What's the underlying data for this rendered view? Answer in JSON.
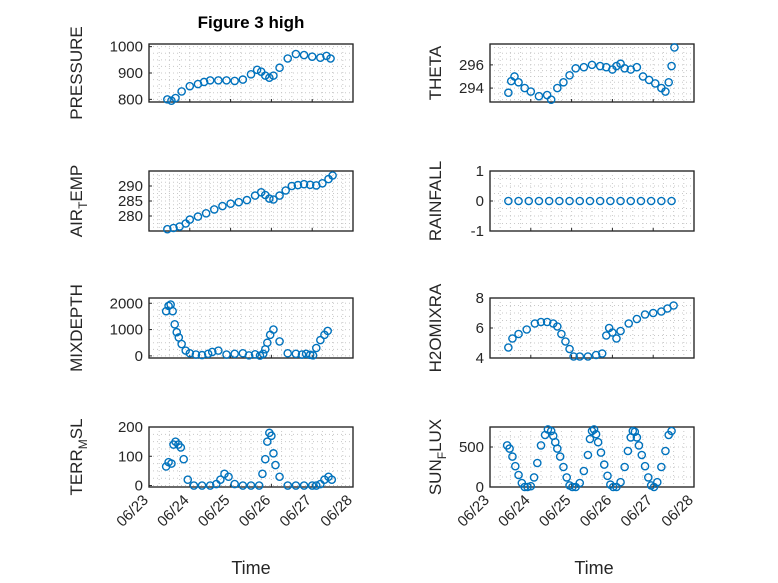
{
  "figure": {
    "title": "Figure 3 high",
    "xlabel": "Time",
    "marker_color": "#0072BD",
    "grid": true
  },
  "chart_data": [
    {
      "type": "scatter",
      "marker": "circle",
      "ylabel": "PRESSURE",
      "xlim": [
        "06/23",
        "06/28"
      ],
      "xtick_labels": [],
      "ylim": [
        790,
        1010
      ],
      "yticks": [
        800,
        900,
        1000
      ],
      "x": [
        23.45,
        23.55,
        23.65,
        23.8,
        24.0,
        24.2,
        24.35,
        24.5,
        24.7,
        24.9,
        25.1,
        25.3,
        25.5,
        25.65,
        25.75,
        25.85,
        25.95,
        26.05,
        26.2,
        26.4,
        26.6,
        26.8,
        27.0,
        27.2,
        27.35,
        27.45
      ],
      "y": [
        800,
        795,
        805,
        830,
        850,
        858,
        866,
        872,
        872,
        872,
        870,
        875,
        895,
        912,
        905,
        890,
        882,
        890,
        920,
        955,
        972,
        968,
        962,
        958,
        965,
        955
      ]
    },
    {
      "type": "scatter",
      "marker": "circle",
      "ylabel": "THETA",
      "xlim": [
        "06/23",
        "06/28"
      ],
      "xtick_labels": [],
      "ylim": [
        292.8,
        297.8
      ],
      "yticks": [
        294,
        296
      ],
      "x": [
        23.45,
        23.52,
        23.6,
        23.7,
        23.85,
        24.0,
        24.2,
        24.4,
        24.5,
        24.65,
        24.8,
        24.95,
        25.1,
        25.3,
        25.5,
        25.7,
        25.85,
        26.0,
        26.1,
        26.2,
        26.3,
        26.45,
        26.6,
        26.75,
        26.9,
        27.05,
        27.2,
        27.3,
        27.38,
        27.45,
        27.52
      ],
      "y": [
        293.6,
        294.6,
        295.0,
        294.5,
        294.0,
        293.7,
        293.3,
        293.4,
        293.0,
        294.0,
        294.5,
        295.1,
        295.7,
        295.8,
        296.0,
        295.9,
        295.8,
        295.6,
        295.9,
        296.1,
        295.7,
        295.6,
        295.8,
        295.0,
        294.7,
        294.4,
        294.0,
        293.7,
        294.5,
        295.9,
        297.5
      ]
    },
    {
      "type": "scatter",
      "marker": "circle",
      "ylabel": "AIR_TEMP",
      "xlim": [
        "06/23",
        "06/28"
      ],
      "xtick_labels": [],
      "ylim": [
        275,
        295
      ],
      "yticks": [
        280,
        285,
        290
      ],
      "x": [
        23.45,
        23.6,
        23.75,
        23.9,
        24.0,
        24.2,
        24.4,
        24.6,
        24.8,
        25.0,
        25.2,
        25.4,
        25.6,
        25.75,
        25.85,
        25.95,
        26.05,
        26.2,
        26.35,
        26.5,
        26.65,
        26.8,
        26.95,
        27.1,
        27.25,
        27.4,
        27.5
      ],
      "y": [
        275.6,
        276.0,
        276.5,
        277.5,
        278.8,
        279.8,
        280.9,
        282.2,
        283.3,
        284.1,
        284.6,
        285.3,
        286.8,
        287.9,
        287.0,
        285.8,
        285.5,
        286.8,
        288.5,
        290.0,
        290.3,
        290.6,
        290.4,
        290.2,
        290.9,
        292.3,
        293.5
      ]
    },
    {
      "type": "scatter",
      "marker": "circle",
      "ylabel": "RAINFALL",
      "xlim": [
        "06/23",
        "06/28"
      ],
      "xtick_labels": [],
      "ylim": [
        -1,
        1
      ],
      "yticks": [
        -1,
        0,
        1
      ],
      "x": [
        23.45,
        23.7,
        23.95,
        24.2,
        24.45,
        24.7,
        24.95,
        25.2,
        25.45,
        25.7,
        25.95,
        26.2,
        26.45,
        26.7,
        26.95,
        27.2,
        27.45
      ],
      "y": [
        0,
        0,
        0,
        0,
        0,
        0,
        0,
        0,
        0,
        0,
        0,
        0,
        0,
        0,
        0,
        0,
        0
      ]
    },
    {
      "type": "scatter",
      "marker": "circle",
      "ylabel": "MIXDEPTH",
      "xlim": [
        "06/23",
        "06/28"
      ],
      "xtick_labels": [],
      "ylim": [
        -80,
        2200
      ],
      "yticks": [
        0,
        1000,
        2000
      ],
      "x": [
        23.42,
        23.48,
        23.53,
        23.58,
        23.63,
        23.68,
        23.73,
        23.8,
        23.9,
        24.0,
        24.15,
        24.3,
        24.45,
        24.55,
        24.7,
        24.9,
        25.1,
        25.3,
        25.45,
        25.6,
        25.72,
        25.8,
        25.85,
        25.9,
        25.97,
        26.05,
        26.2,
        26.4,
        26.6,
        26.75,
        26.85,
        26.95,
        27.02,
        27.1,
        27.2,
        27.3,
        27.38
      ],
      "y": [
        1700,
        1900,
        1950,
        1700,
        1200,
        900,
        700,
        450,
        200,
        100,
        50,
        30,
        80,
        150,
        200,
        50,
        80,
        100,
        20,
        60,
        10,
        80,
        250,
        500,
        800,
        1000,
        550,
        100,
        80,
        50,
        80,
        40,
        20,
        300,
        600,
        800,
        950
      ]
    },
    {
      "type": "scatter",
      "marker": "circle",
      "ylabel": "H2OMIXRA",
      "xlim": [
        "06/23",
        "06/28"
      ],
      "xtick_labels": [],
      "ylim": [
        4,
        8
      ],
      "yticks": [
        4,
        6,
        8
      ],
      "x": [
        23.45,
        23.55,
        23.7,
        23.9,
        24.1,
        24.25,
        24.4,
        24.55,
        24.65,
        24.75,
        24.85,
        24.95,
        25.05,
        25.2,
        25.4,
        25.6,
        25.75,
        25.85,
        25.92,
        26.0,
        26.1,
        26.2,
        26.4,
        26.6,
        26.8,
        27.0,
        27.2,
        27.35,
        27.5
      ],
      "y": [
        4.7,
        5.3,
        5.6,
        5.9,
        6.3,
        6.4,
        6.4,
        6.3,
        6.1,
        5.6,
        5.1,
        4.6,
        4.1,
        4.1,
        4.1,
        4.2,
        4.3,
        5.5,
        6.0,
        5.7,
        5.3,
        5.8,
        6.3,
        6.6,
        6.9,
        7.0,
        7.1,
        7.3,
        7.5
      ]
    },
    {
      "type": "scatter",
      "marker": "circle",
      "ylabel": "TERR_MSL",
      "xlim": [
        "06/23",
        "06/28"
      ],
      "xtick_labels": [
        "06/23",
        "06/24",
        "06/25",
        "06/26",
        "06/27",
        "06/28"
      ],
      "ylim": [
        -5,
        200
      ],
      "yticks": [
        0,
        100,
        200
      ],
      "x": [
        23.42,
        23.48,
        23.55,
        23.6,
        23.65,
        23.72,
        23.78,
        23.85,
        23.95,
        24.1,
        24.3,
        24.5,
        24.65,
        24.75,
        24.85,
        24.95,
        25.1,
        25.3,
        25.5,
        25.7,
        25.78,
        25.85,
        25.9,
        25.95,
        26.0,
        26.05,
        26.1,
        26.2,
        26.4,
        26.6,
        26.8,
        27.0,
        27.1,
        27.2,
        27.3,
        27.4,
        27.48
      ],
      "y": [
        65,
        80,
        75,
        140,
        150,
        140,
        130,
        90,
        20,
        0,
        0,
        0,
        5,
        20,
        40,
        30,
        5,
        0,
        0,
        0,
        40,
        90,
        150,
        180,
        170,
        110,
        70,
        30,
        0,
        0,
        0,
        0,
        0,
        5,
        20,
        30,
        20
      ]
    },
    {
      "type": "scatter",
      "marker": "circle",
      "ylabel": "SUN_FLUX",
      "xlim": [
        "06/23",
        "06/28"
      ],
      "xtick_labels": [
        "06/23",
        "06/24",
        "06/25",
        "06/26",
        "06/27",
        "06/28"
      ],
      "ylim": [
        0,
        750
      ],
      "yticks": [
        0,
        500
      ],
      "x": [
        23.42,
        23.48,
        23.55,
        23.62,
        23.7,
        23.78,
        23.85,
        23.92,
        24.0,
        24.08,
        24.16,
        24.25,
        24.35,
        24.42,
        24.5,
        24.55,
        24.6,
        24.65,
        24.72,
        24.8,
        24.88,
        24.95,
        25.02,
        25.1,
        25.2,
        25.3,
        25.4,
        25.45,
        25.5,
        25.55,
        25.6,
        25.65,
        25.72,
        25.8,
        25.88,
        25.95,
        26.02,
        26.1,
        26.2,
        26.3,
        26.38,
        26.45,
        26.5,
        26.55,
        26.6,
        26.65,
        26.72,
        26.8,
        26.88,
        26.95,
        27.02,
        27.1,
        27.2,
        27.3,
        27.38,
        27.45
      ],
      "y": [
        520,
        480,
        380,
        260,
        150,
        50,
        0,
        0,
        10,
        120,
        300,
        520,
        650,
        720,
        700,
        640,
        560,
        480,
        380,
        250,
        120,
        20,
        0,
        0,
        50,
        200,
        400,
        600,
        700,
        720,
        660,
        560,
        430,
        280,
        140,
        30,
        0,
        0,
        60,
        250,
        450,
        620,
        700,
        690,
        620,
        520,
        400,
        260,
        120,
        20,
        0,
        60,
        250,
        450,
        650,
        700
      ]
    }
  ]
}
